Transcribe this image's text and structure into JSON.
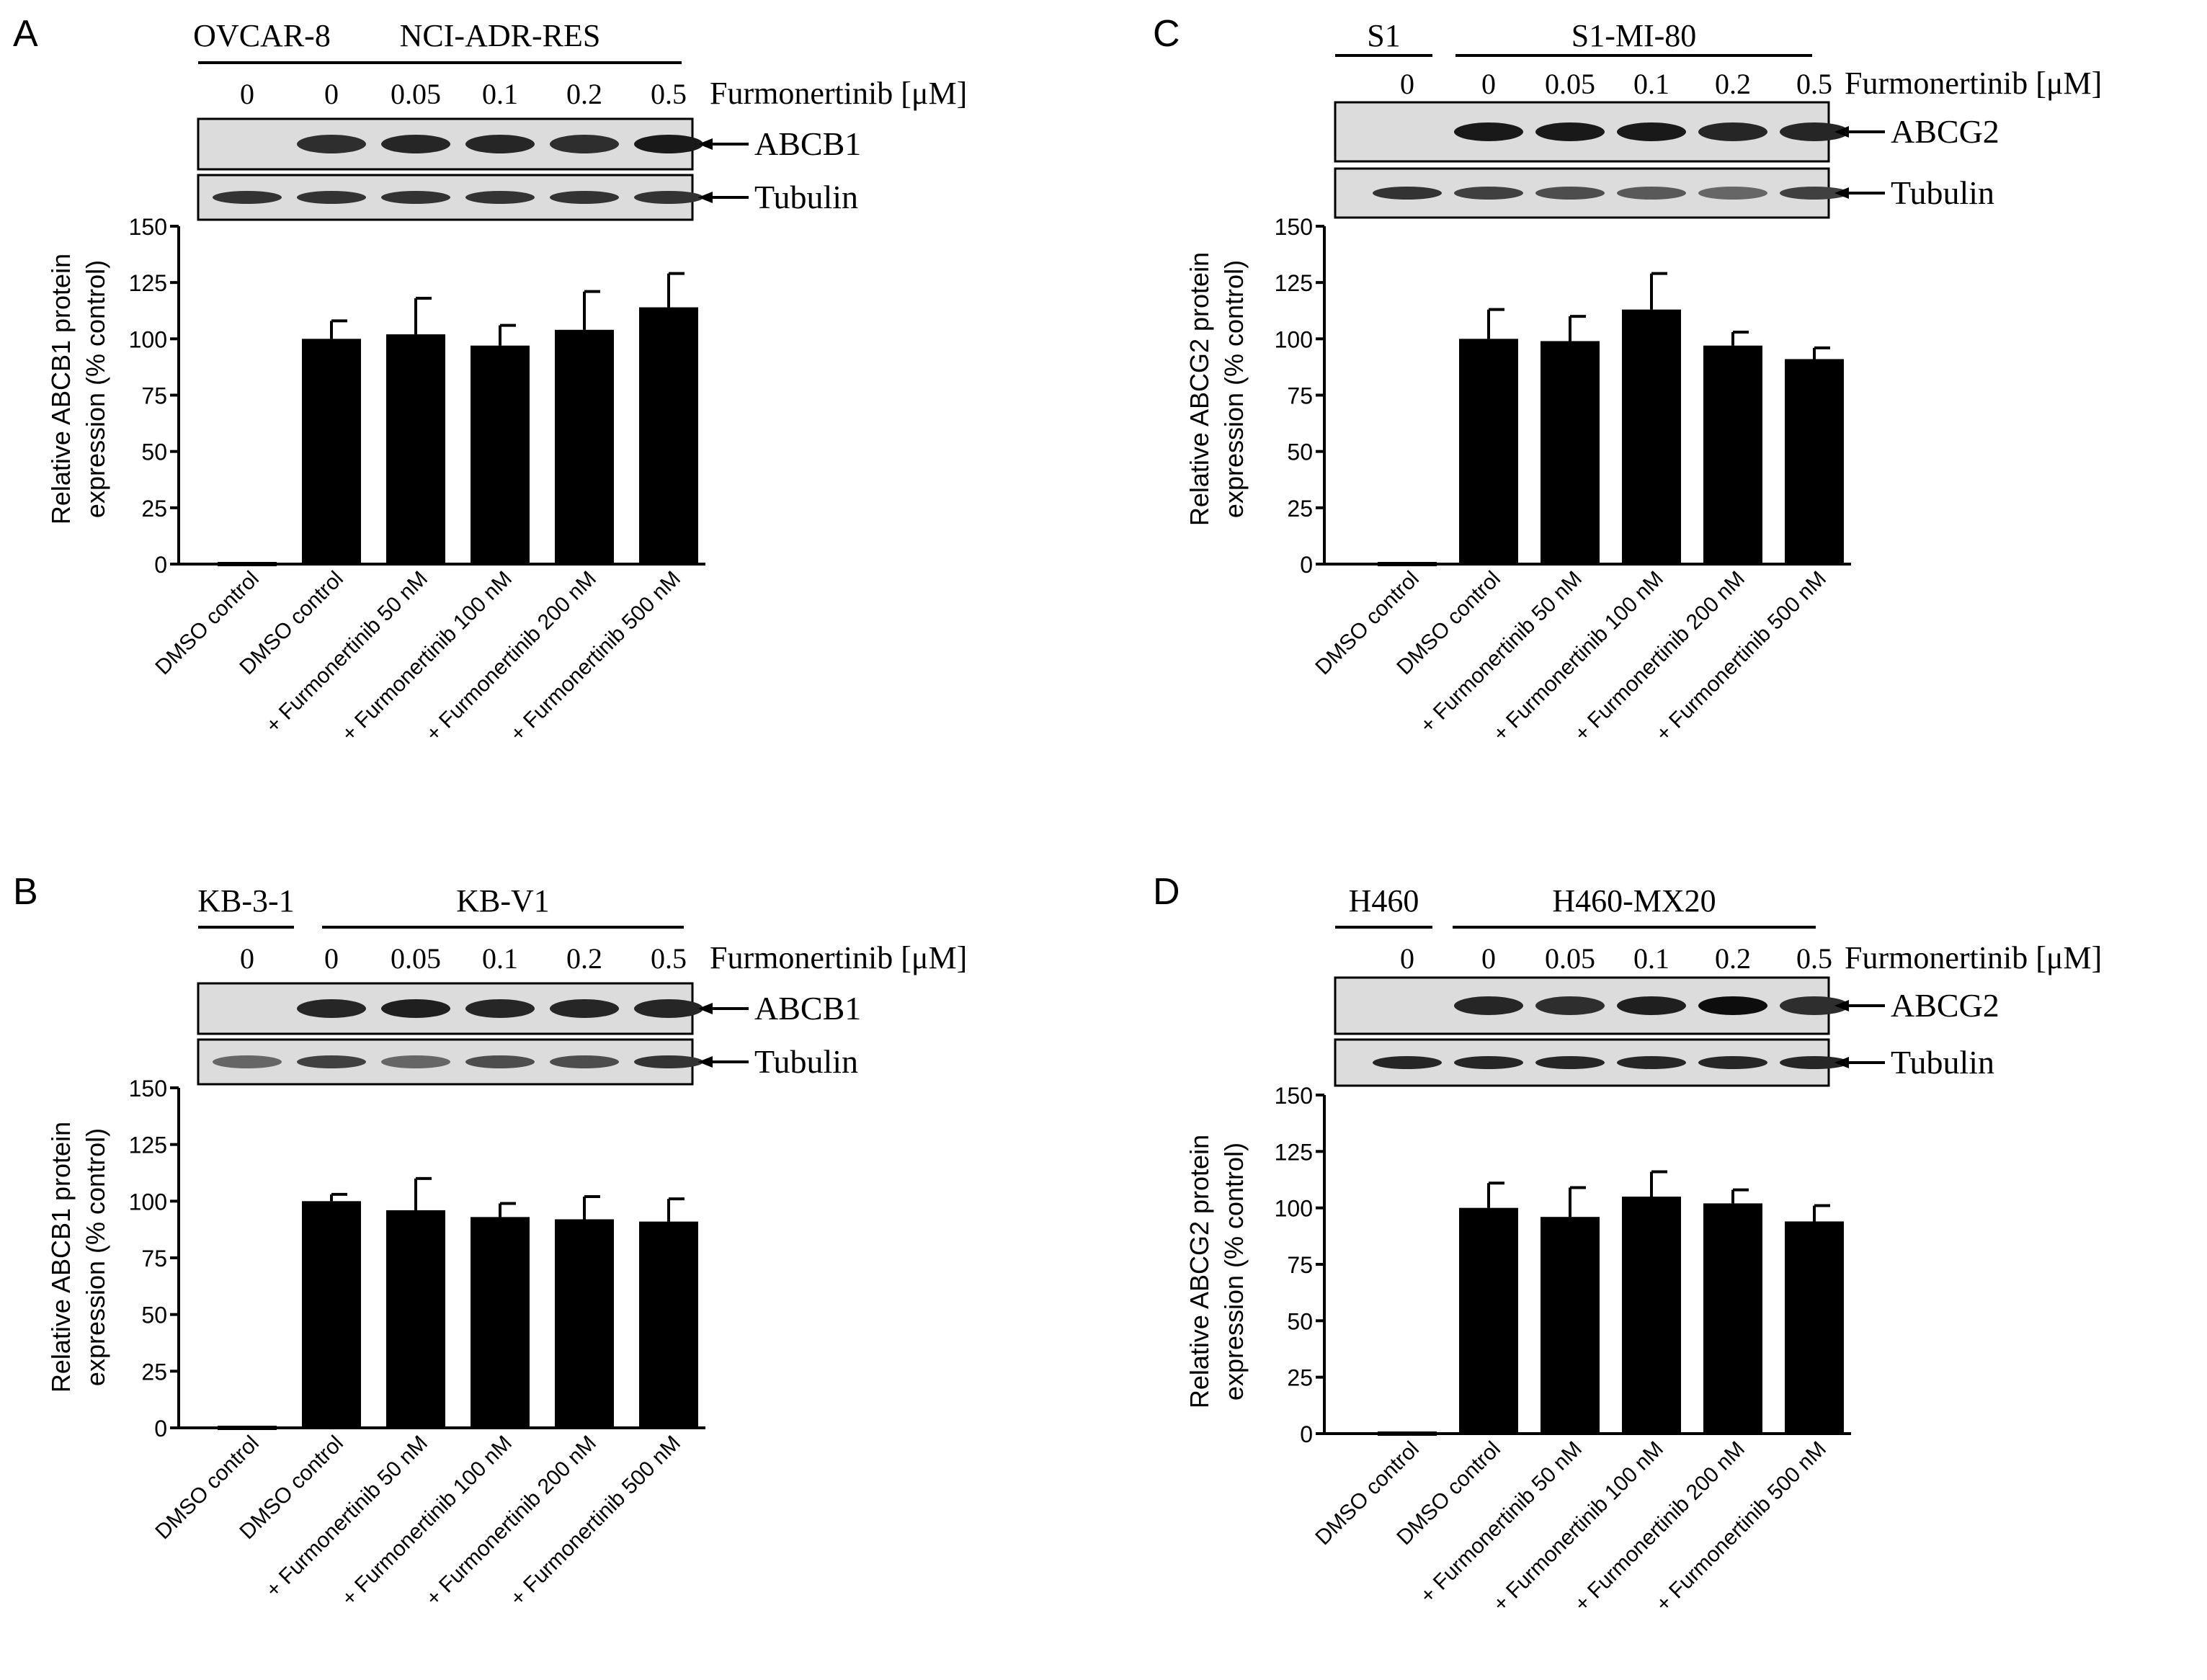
{
  "figure": {
    "panels": [
      {
        "letter": "A",
        "blot": {
          "parental_label": "OVCAR-8",
          "resistant_label": "NCI-ADR-RES",
          "concentrations": [
            "0",
            "0",
            "0.05",
            "0.1",
            "0.2",
            "0.5"
          ],
          "treatment_label": "Furmonertinib [μM]",
          "band_labels": [
            "ABCB1",
            "Tubulin"
          ],
          "top_band_present": [
            false,
            true,
            true,
            true,
            true,
            true
          ],
          "top_band_intensity": [
            0,
            0.82,
            0.85,
            0.85,
            0.82,
            0.9
          ],
          "tubulin_intensity": [
            0.8,
            0.8,
            0.8,
            0.8,
            0.8,
            0.8
          ]
        }
      },
      {
        "letter": "B",
        "blot": {
          "parental_label": "KB-3-1",
          "resistant_label": "KB-V1",
          "concentrations": [
            "0",
            "0",
            "0.05",
            "0.1",
            "0.2",
            "0.5"
          ],
          "treatment_label": "Furmonertinib [μM]",
          "band_labels": [
            "ABCB1",
            "Tubulin"
          ],
          "top_band_present": [
            false,
            true,
            true,
            true,
            true,
            true
          ],
          "top_band_intensity": [
            0,
            0.85,
            0.88,
            0.85,
            0.85,
            0.85
          ],
          "tubulin_intensity": [
            0.6,
            0.75,
            0.6,
            0.7,
            0.7,
            0.8
          ]
        }
      },
      {
        "letter": "C",
        "blot": {
          "parental_label": "S1",
          "resistant_label": "S1-MI-80",
          "concentrations": [
            "0",
            "0",
            "0.05",
            "0.1",
            "0.2",
            "0.5"
          ],
          "treatment_label": "Furmonertinib [μM]",
          "band_labels": [
            "ABCG2",
            "Tubulin"
          ],
          "top_band_present": [
            false,
            true,
            true,
            true,
            true,
            true
          ],
          "top_band_intensity": [
            0,
            0.9,
            0.9,
            0.9,
            0.85,
            0.85
          ],
          "tubulin_intensity": [
            0.8,
            0.75,
            0.7,
            0.65,
            0.6,
            0.75
          ]
        }
      },
      {
        "letter": "D",
        "blot": {
          "parental_label": "H460",
          "resistant_label": "H460-MX20",
          "concentrations": [
            "0",
            "0",
            "0.05",
            "0.1",
            "0.2",
            "0.5"
          ],
          "treatment_label": "Furmonertinib [μM]",
          "band_labels": [
            "ABCG2",
            "Tubulin"
          ],
          "top_band_present": [
            false,
            true,
            true,
            true,
            true,
            true
          ],
          "top_band_intensity": [
            0,
            0.85,
            0.82,
            0.88,
            0.95,
            0.82
          ],
          "tubulin_intensity": [
            0.85,
            0.85,
            0.85,
            0.85,
            0.85,
            0.85
          ]
        }
      }
    ]
  },
  "chart_data": [
    {
      "panel": "A",
      "type": "bar",
      "categories": [
        "DMSO control",
        "DMSO control",
        "+ Furmonertinib 50 nM",
        "+ Furmonertinib 100 nM",
        "+ Furmonertinib 200 nM",
        "+ Furmonertinib 500 nM"
      ],
      "values": [
        0,
        100,
        102,
        97,
        104,
        114
      ],
      "errors": [
        0,
        8,
        16,
        9,
        17,
        15
      ],
      "ylabel": [
        "Relative ABCB1 protein",
        "expression (% control)"
      ],
      "ylim": [
        0,
        150
      ],
      "yticks": [
        0,
        25,
        50,
        75,
        100,
        125,
        150
      ],
      "bar_color": "#000000"
    },
    {
      "panel": "B",
      "type": "bar",
      "categories": [
        "DMSO control",
        "DMSO control",
        "+ Furmonertinib 50 nM",
        "+ Furmonertinib 100 nM",
        "+ Furmonertinib 200 nM",
        "+ Furmonertinib 500 nM"
      ],
      "values": [
        0,
        100,
        96,
        93,
        92,
        91
      ],
      "errors": [
        0,
        3,
        14,
        6,
        10,
        10
      ],
      "ylabel": [
        "Relative ABCB1 protein",
        "expression (% control)"
      ],
      "ylim": [
        0,
        150
      ],
      "yticks": [
        0,
        25,
        50,
        75,
        100,
        125,
        150
      ],
      "bar_color": "#000000"
    },
    {
      "panel": "C",
      "type": "bar",
      "categories": [
        "DMSO control",
        "DMSO control",
        "+ Furmonertinib 50 nM",
        "+ Furmonertinib 100 nM",
        "+ Furmonertinib 200 nM",
        "+ Furmonertinib 500 nM"
      ],
      "values": [
        0,
        100,
        99,
        113,
        97,
        91
      ],
      "errors": [
        0,
        13,
        11,
        16,
        6,
        5
      ],
      "ylabel": [
        "Relative ABCG2 protein",
        "expression (% control)"
      ],
      "ylim": [
        0,
        150
      ],
      "yticks": [
        0,
        25,
        50,
        75,
        100,
        125,
        150
      ],
      "bar_color": "#000000"
    },
    {
      "panel": "D",
      "type": "bar",
      "categories": [
        "DMSO control",
        "DMSO control",
        "+ Furmonertinib 50 nM",
        "+ Furmonertinib 100 nM",
        "+ Furmonertinib 200 nM",
        "+ Furmonertinib 500 nM"
      ],
      "values": [
        0,
        100,
        96,
        105,
        102,
        94
      ],
      "errors": [
        0,
        11,
        13,
        11,
        6,
        7
      ],
      "ylabel": [
        "Relative ABCG2 protein",
        "expression (% control)"
      ],
      "ylim": [
        0,
        150
      ],
      "yticks": [
        0,
        25,
        50,
        75,
        100,
        125,
        150
      ],
      "bar_color": "#000000"
    }
  ]
}
